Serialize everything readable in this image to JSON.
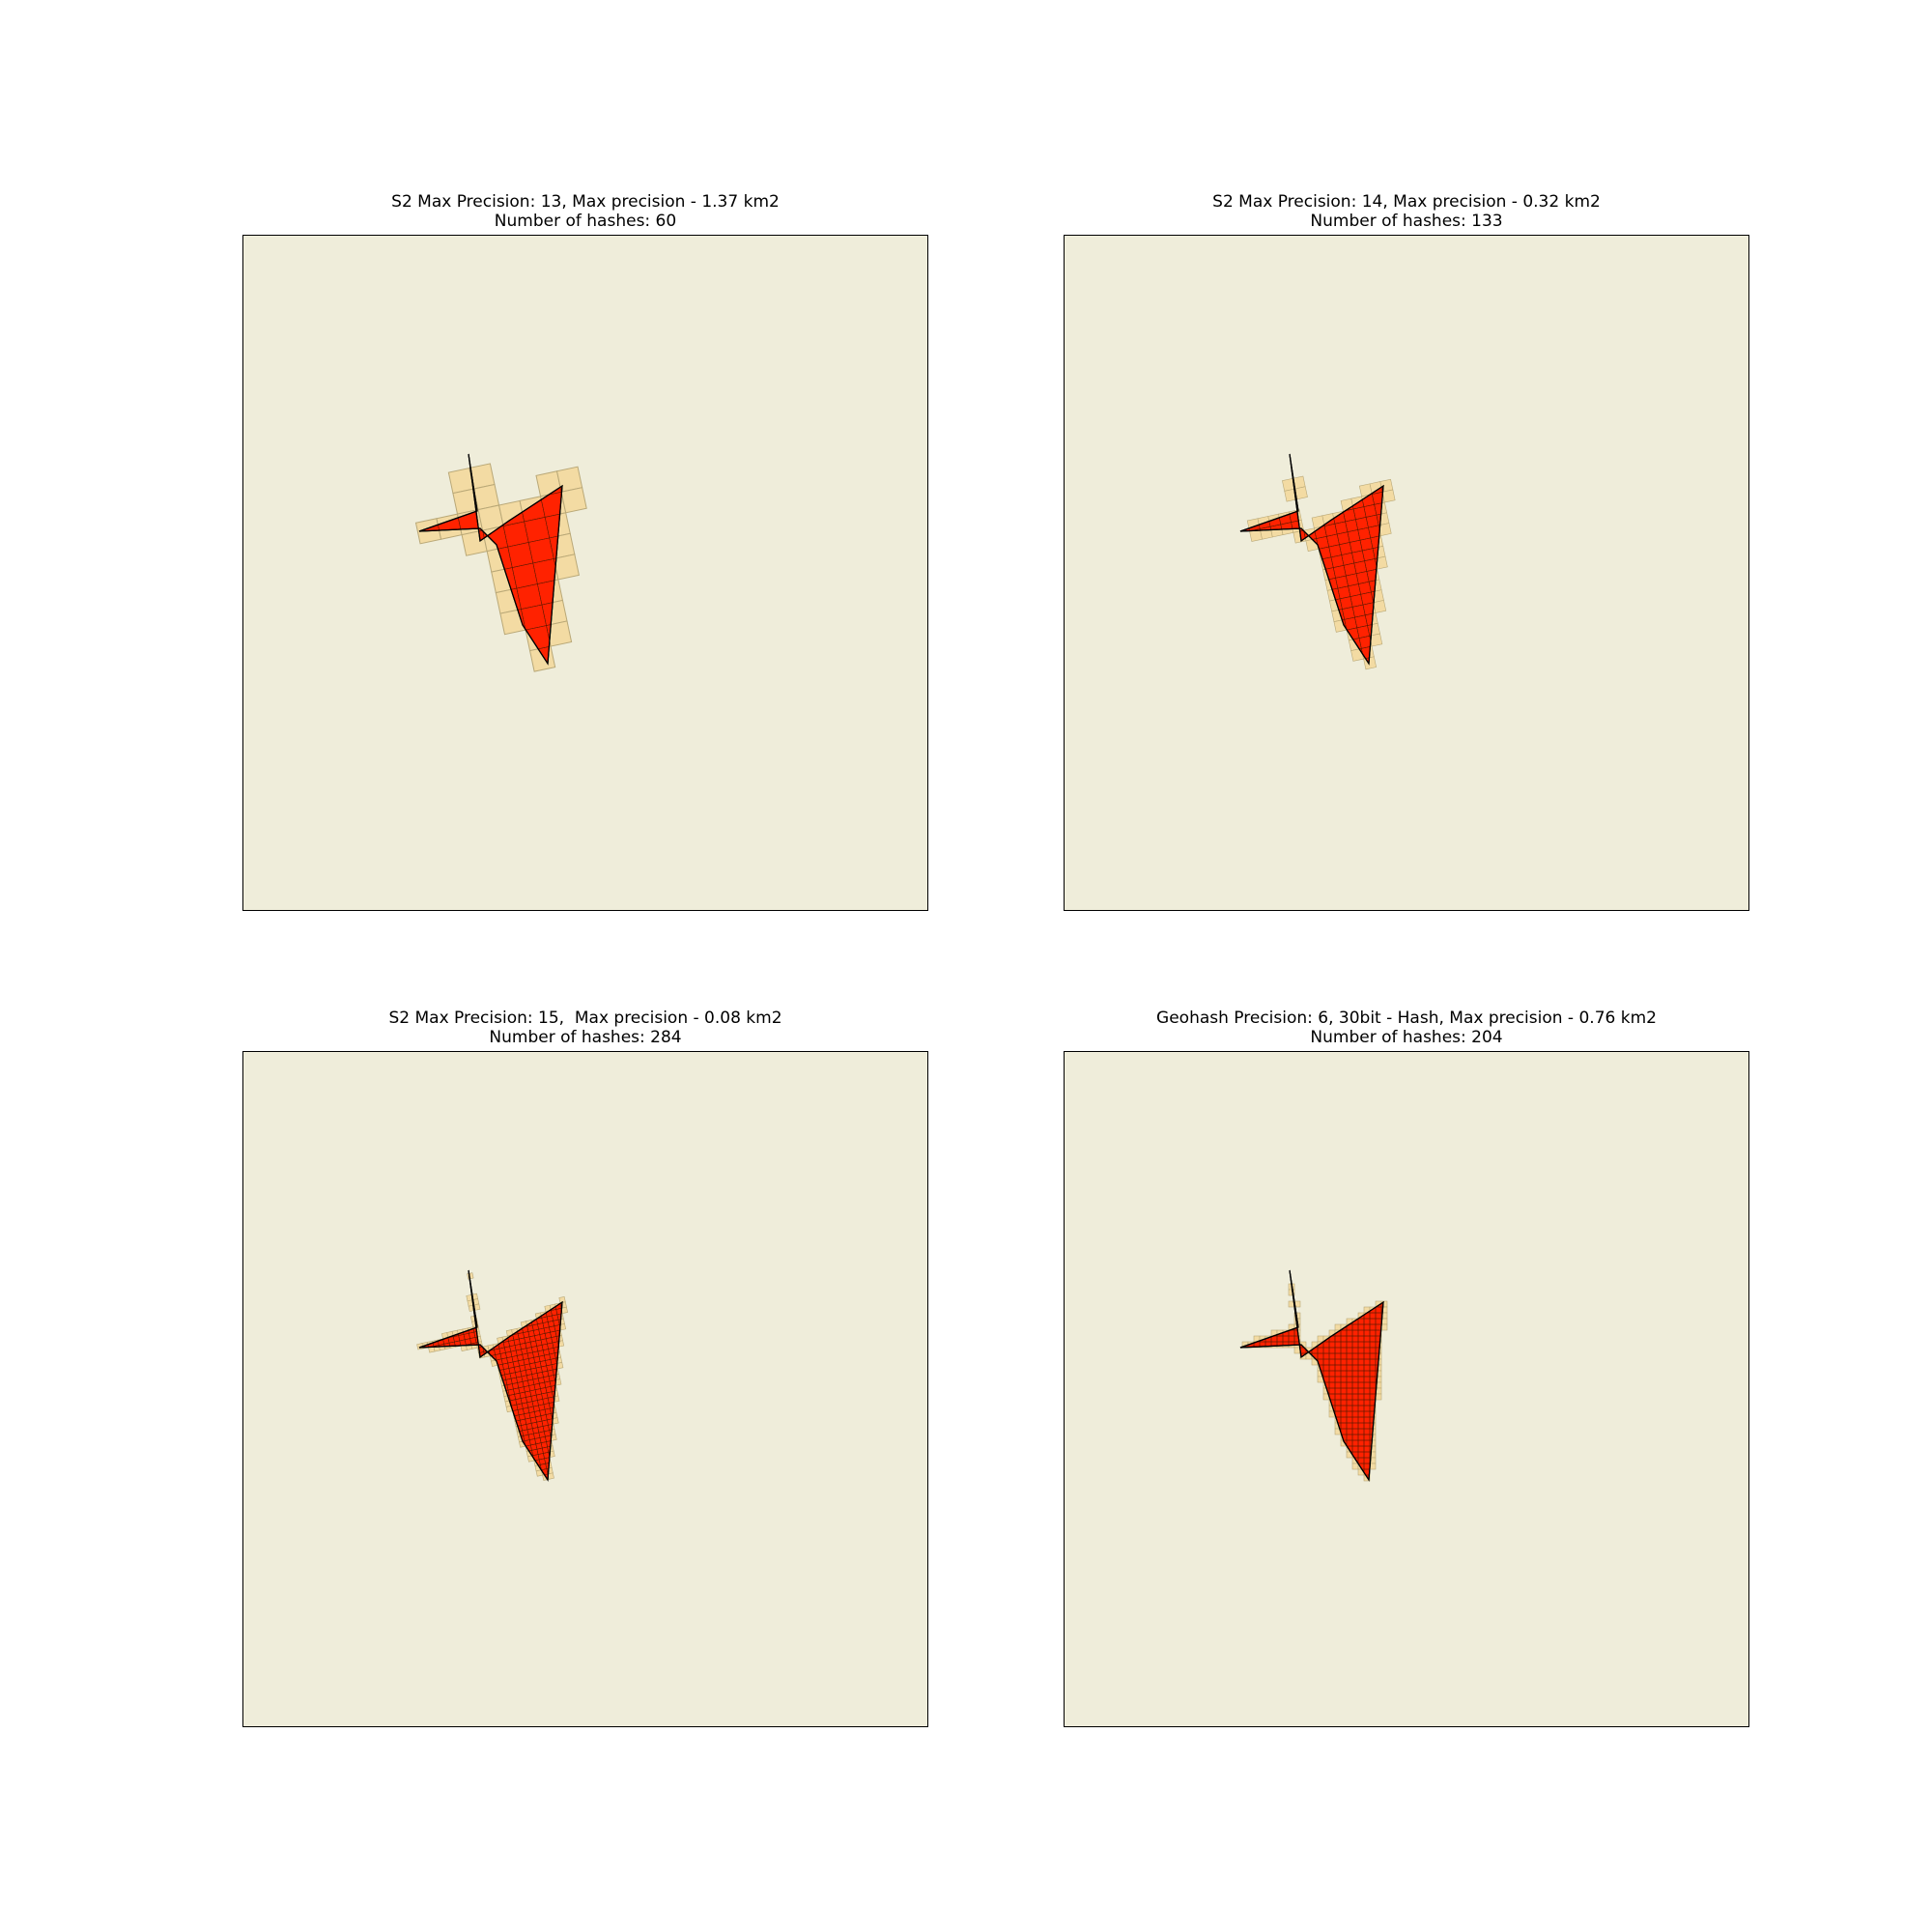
{
  "colors": {
    "background": "#efedda",
    "polygon_fill": "#ff2200",
    "polygon_edge": "#000000",
    "cell_fill": "#f3dba3",
    "cell_edge": "#b9a877"
  },
  "panels": [
    {
      "title_line1": "S2 Max Precision: 13, Max precision - 1.37 km2",
      "title_line2": "Number of hashes: 60",
      "hash_system": "s2",
      "hash_count": 60
    },
    {
      "title_line1": "S2 Max Precision: 14, Max precision - 0.32 km2",
      "title_line2": "Number of hashes: 133",
      "hash_system": "s2",
      "hash_count": 133
    },
    {
      "title_line1": "S2 Max Precision: 15,  Max precision - 0.08 km2",
      "title_line2": "Number of hashes: 284",
      "hash_system": "s2",
      "hash_count": 284
    },
    {
      "title_line1": "Geohash Precision: 6, 30bit - Hash, Max precision - 0.76 km2",
      "title_line2": "Number of hashes: 204",
      "hash_system": "geohash",
      "hash_count": 204
    }
  ]
}
